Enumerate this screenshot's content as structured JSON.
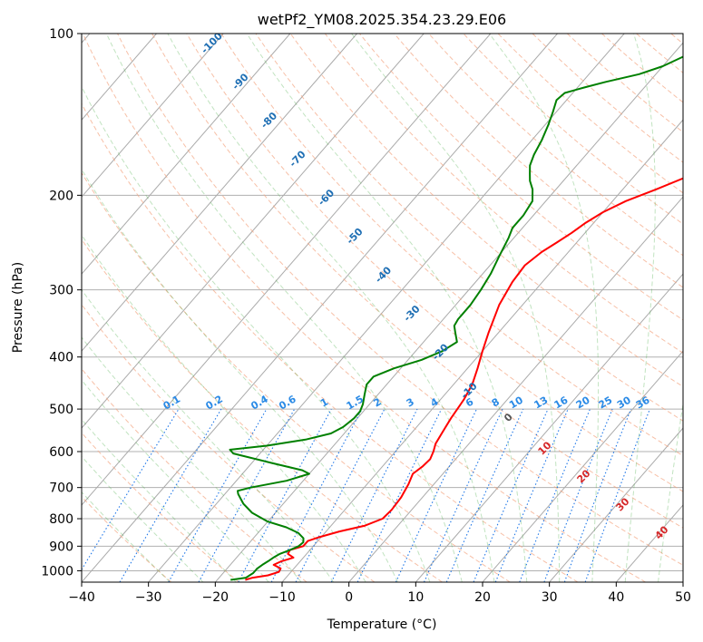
{
  "chart_data": {
    "type": "line",
    "title": "wetPf2_YM08.2025.354.23.29.E06",
    "xlabel": "Temperature (°C)",
    "ylabel": "Pressure (hPa)",
    "xlim": [
      -40,
      50
    ],
    "ylim": [
      1050,
      100
    ],
    "y_scale": "log",
    "x_ticks": [
      -40,
      -30,
      -20,
      -10,
      0,
      10,
      20,
      30,
      40,
      50
    ],
    "y_ticks": [
      100,
      200,
      300,
      400,
      500,
      600,
      700,
      800,
      900,
      1000
    ],
    "grid": true,
    "skew": true,
    "series": [
      {
        "color": "#ff0000",
        "points": [
          [
            -15.8,
            1040
          ],
          [
            -15.0,
            1030
          ],
          [
            -13.0,
            1020
          ],
          [
            -11.8,
            1005
          ],
          [
            -12.0,
            990
          ],
          [
            -13.5,
            975
          ],
          [
            -12.8,
            960
          ],
          [
            -11.5,
            945
          ],
          [
            -12.8,
            930
          ],
          [
            -13.0,
            915
          ],
          [
            -11.5,
            900
          ],
          [
            -11.5,
            880
          ],
          [
            -10.2,
            865
          ],
          [
            -8.0,
            845
          ],
          [
            -5.0,
            825
          ],
          [
            -3.2,
            800
          ],
          [
            -3.0,
            770
          ],
          [
            -3.2,
            730
          ],
          [
            -3.8,
            690
          ],
          [
            -4.5,
            660
          ],
          [
            -4.0,
            640
          ],
          [
            -3.8,
            620
          ],
          [
            -4.3,
            600
          ],
          [
            -5.0,
            580
          ],
          [
            -5.5,
            550
          ],
          [
            -6.0,
            520
          ],
          [
            -6.5,
            480
          ],
          [
            -7.2,
            450
          ],
          [
            -8.5,
            420
          ],
          [
            -10.0,
            390
          ],
          [
            -11.5,
            360
          ],
          [
            -13.5,
            320
          ],
          [
            -14.5,
            290
          ],
          [
            -14.8,
            270
          ],
          [
            -14.0,
            255
          ],
          [
            -13.0,
            245
          ],
          [
            -12.0,
            235
          ],
          [
            -11.2,
            225
          ],
          [
            -10.0,
            215
          ],
          [
            -8.0,
            205
          ],
          [
            -5.0,
            195
          ],
          [
            -1.5,
            183
          ],
          [
            2.0,
            172
          ],
          [
            4.5,
            161
          ],
          [
            6.5,
            151
          ],
          [
            8.8,
            141
          ],
          [
            11.5,
            131
          ],
          [
            14.5,
            123
          ],
          [
            16.5,
            116
          ],
          [
            17.5,
            110
          ],
          [
            18.7,
            104
          ],
          [
            19.5,
            100
          ]
        ]
      },
      {
        "color": "#008000",
        "points": [
          [
            -18.0,
            1040
          ],
          [
            -16.0,
            1030
          ],
          [
            -15.5,
            1010
          ],
          [
            -15.5,
            990
          ],
          [
            -15.2,
            975
          ],
          [
            -14.8,
            960
          ],
          [
            -14.5,
            945
          ],
          [
            -14.0,
            930
          ],
          [
            -13.0,
            915
          ],
          [
            -12.2,
            900
          ],
          [
            -12.0,
            885
          ],
          [
            -12.5,
            870
          ],
          [
            -14.0,
            850
          ],
          [
            -16.5,
            830
          ],
          [
            -20.0,
            810
          ],
          [
            -23.5,
            780
          ],
          [
            -26.0,
            750
          ],
          [
            -28.0,
            720
          ],
          [
            -28.5,
            710
          ],
          [
            -27.0,
            700
          ],
          [
            -22.5,
            680
          ],
          [
            -20.0,
            660
          ],
          [
            -21.5,
            650
          ],
          [
            -27.0,
            630
          ],
          [
            -34.0,
            605
          ],
          [
            -35.0,
            595
          ],
          [
            -30.0,
            585
          ],
          [
            -25.0,
            570
          ],
          [
            -22.0,
            555
          ],
          [
            -21.0,
            540
          ],
          [
            -20.5,
            520
          ],
          [
            -20.5,
            505
          ],
          [
            -21.0,
            490
          ],
          [
            -22.0,
            470
          ],
          [
            -23.0,
            450
          ],
          [
            -23.0,
            435
          ],
          [
            -21.0,
            420
          ],
          [
            -18.0,
            405
          ],
          [
            -16.0,
            390
          ],
          [
            -15.0,
            375
          ],
          [
            -16.5,
            360
          ],
          [
            -17.5,
            350
          ],
          [
            -17.8,
            340
          ],
          [
            -17.8,
            320
          ],
          [
            -18.2,
            300
          ],
          [
            -18.8,
            280
          ],
          [
            -19.8,
            260
          ],
          [
            -20.8,
            240
          ],
          [
            -21.5,
            230
          ],
          [
            -21.5,
            218
          ],
          [
            -22.0,
            205
          ],
          [
            -23.5,
            195
          ],
          [
            -25.0,
            188
          ],
          [
            -26.0,
            182
          ],
          [
            -27.0,
            176
          ],
          [
            -27.8,
            168
          ],
          [
            -28.5,
            158
          ],
          [
            -29.5,
            148
          ],
          [
            -30.5,
            140
          ],
          [
            -31.5,
            133
          ],
          [
            -31.2,
            129
          ],
          [
            -29.0,
            126
          ],
          [
            -26.5,
            123
          ],
          [
            -22.5,
            119
          ],
          [
            -20.0,
            115
          ],
          [
            -18.0,
            110
          ],
          [
            -17.0,
            105
          ],
          [
            -16.7,
            100
          ]
        ]
      }
    ],
    "dry_adiabat_labels": [
      "-100",
      "-90",
      "-80",
      "-70",
      "-60",
      "-50",
      "-40",
      "-30",
      "-20",
      "-10",
      "0",
      "10",
      "20",
      "30",
      "40"
    ],
    "mixing_ratio_labels": [
      "0.1",
      "0.2",
      "0.4",
      "0.6",
      "1",
      "1.5",
      "2",
      "3",
      "4",
      "6",
      "8",
      "10",
      "13",
      "16",
      "20",
      "25",
      "30",
      "36"
    ]
  }
}
